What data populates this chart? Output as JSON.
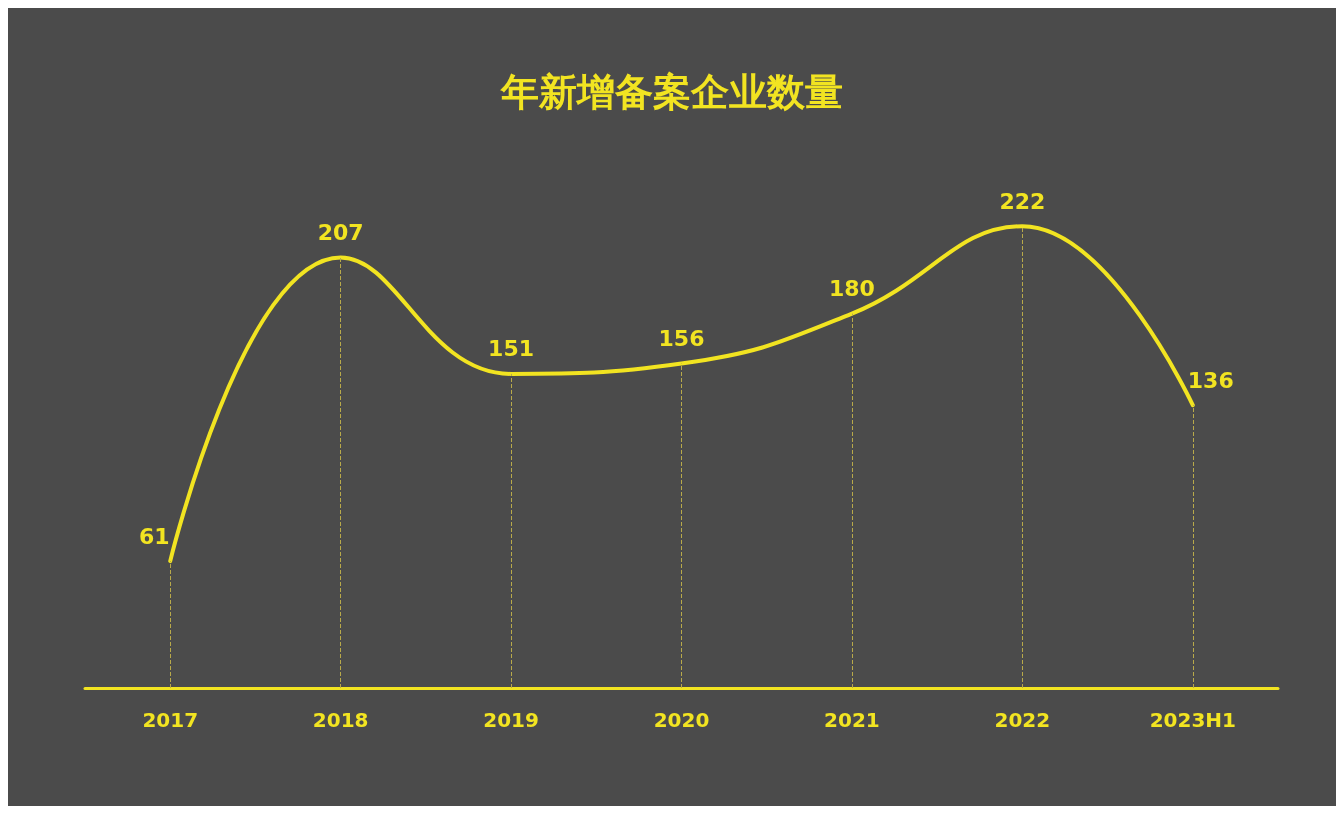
{
  "chart_data": {
    "type": "line",
    "title": "年新增备案企业数量",
    "categories": [
      "2017",
      "2018",
      "2019",
      "2020",
      "2021",
      "2022",
      "2023H1"
    ],
    "series": [
      {
        "color": "#f2e421",
        "values": [
          61,
          207,
          151,
          156,
          180,
          222,
          136
        ]
      }
    ],
    "data_labels": true,
    "marker": "none",
    "grid": "x"
  }
}
